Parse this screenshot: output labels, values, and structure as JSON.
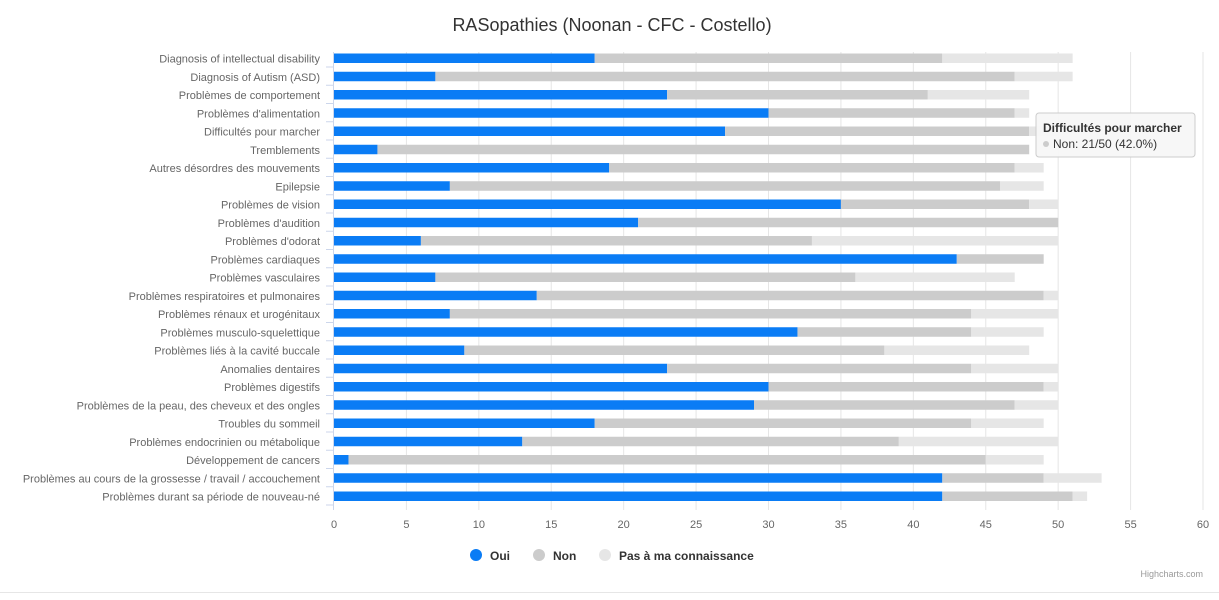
{
  "chart_data": {
    "type": "bar",
    "orientation": "horizontal",
    "stacked": true,
    "title": "RASopathies (Noonan - CFC - Costello)",
    "categories": [
      "Diagnosis of intellectual disability",
      "Diagnosis of Autism (ASD)",
      "Problèmes de comportement",
      "Problèmes d'alimentation",
      "Difficultés pour marcher",
      "Tremblements",
      "Autres désordres des mouvements",
      "Epilepsie",
      "Problèmes de vision",
      "Problèmes d'audition",
      "Problèmes d'odorat",
      "Problèmes cardiaques",
      "Problèmes vasculaires",
      "Problèmes respiratoires et pulmonaires",
      "Problèmes rénaux et urogénitaux",
      "Problèmes musculo-squelettique",
      "Problèmes liés à la cavité buccale",
      "Anomalies dentaires",
      "Problèmes digestifs",
      "Problèmes de la peau, des cheveux et des ongles",
      "Troubles du sommeil",
      "Problèmes endocrinien ou métabolique",
      "Développement de cancers",
      "Problèmes au cours de la grossesse / travail / accouchement",
      "Problèmes durant sa période de nouveau-né"
    ],
    "series": [
      {
        "name": "Oui",
        "color": "#0a7cf5",
        "values": [
          18,
          7,
          23,
          30,
          27,
          3,
          19,
          8,
          35,
          21,
          6,
          43,
          7,
          14,
          8,
          32,
          9,
          23,
          30,
          29,
          18,
          13,
          1,
          42,
          42
        ]
      },
      {
        "name": "Non",
        "color": "#cccccc",
        "values": [
          24,
          40,
          18,
          17,
          21,
          45,
          28,
          38,
          13,
          29,
          27,
          6,
          29,
          35,
          36,
          12,
          29,
          21,
          19,
          18,
          26,
          26,
          44,
          7,
          9
        ]
      },
      {
        "name": "Pas à ma connaissance",
        "color": "#e6e6e6",
        "values": [
          9,
          4,
          7,
          1,
          2,
          0,
          2,
          3,
          2,
          0,
          17,
          0,
          11,
          1,
          6,
          5,
          10,
          6,
          1,
          3,
          5,
          11,
          4,
          4,
          1
        ]
      }
    ],
    "xlabel": "",
    "ylabel": "",
    "xlim": [
      0,
      60
    ],
    "ticks": [
      0,
      5,
      10,
      15,
      20,
      25,
      30,
      35,
      40,
      45,
      50,
      55,
      60
    ],
    "grid": true,
    "legend_position": "bottom-center"
  },
  "tooltip": {
    "category": "Difficultés pour marcher",
    "text": "Non: 21/50 (42.0%)"
  },
  "credits": "Highcharts.com"
}
